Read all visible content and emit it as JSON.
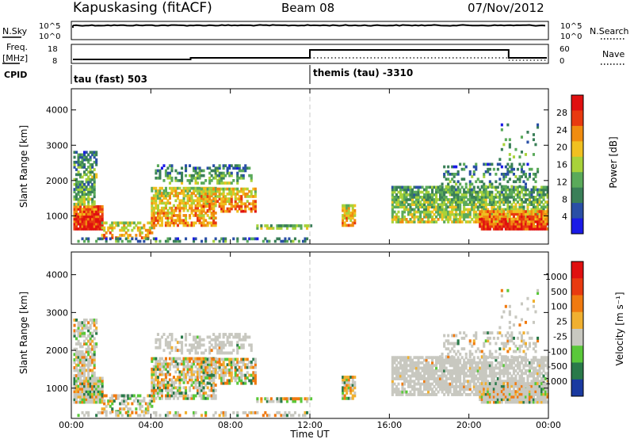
{
  "header": {
    "station": "Kapuskasing (fitACF)",
    "beam": "Beam 08",
    "date": "07/Nov/2012"
  },
  "strips": {
    "nsky_label": "N.Sky",
    "nsky_ticks": [
      "10^5",
      "10^0"
    ],
    "nsearch_label": "N.Search",
    "nsearch_ticks": [
      "10^5",
      "10^0"
    ],
    "freq_label_1": "Freq.",
    "freq_label_2": "[MHz]",
    "freq_ticks": [
      "18",
      "8"
    ],
    "nave_label": "Nave",
    "nave_ticks": [
      "60",
      "0"
    ],
    "cpid_label": "CPID",
    "cpid_segments": [
      {
        "label": "tau (fast) 503",
        "start_hour": 0
      },
      {
        "label": "themis (tau) -3310",
        "start_hour": 12
      }
    ]
  },
  "chart_data": [
    {
      "type": "heatmap",
      "name": "power",
      "ylabel": "Slant Range [km]",
      "x_range_hours": [
        0,
        24
      ],
      "ylim": [
        200,
        4600
      ],
      "yticks": [
        "4000",
        "3000",
        "2000",
        "1000"
      ],
      "colorbar_label": "Power [dB]",
      "colorbar_ticks": [
        "28",
        "24",
        "20",
        "16",
        "12",
        "8",
        "4"
      ],
      "colors": [
        "#1a1ae6",
        "#2a4fa6",
        "#3a7f58",
        "#5aaa5a",
        "#a8d23a",
        "#f0c020",
        "#f08c10",
        "#e83a10",
        "#e01010"
      ]
    },
    {
      "type": "heatmap",
      "name": "velocity",
      "ylabel": "Slant Range [km]",
      "x_range_hours": [
        0,
        24
      ],
      "ylim": [
        200,
        4600
      ],
      "yticks": [
        "4000",
        "3000",
        "2000",
        "1000"
      ],
      "xticks": [
        "00:00",
        "04:00",
        "08:00",
        "12:00",
        "16:00",
        "20:00",
        "00:00"
      ],
      "xlabel": "Time UT",
      "colorbar_label": "Velocity [m s⁻¹]",
      "colorbar_ticks": [
        "1000",
        "500",
        "100",
        "25",
        "-25",
        "-100",
        "-500",
        "-1000"
      ],
      "colors": [
        "#1a3aa0",
        "#2a7a4a",
        "#5ac83a",
        "#c8c8c0",
        "#f0b030",
        "#f07a10",
        "#e83a10",
        "#e01010"
      ]
    }
  ]
}
